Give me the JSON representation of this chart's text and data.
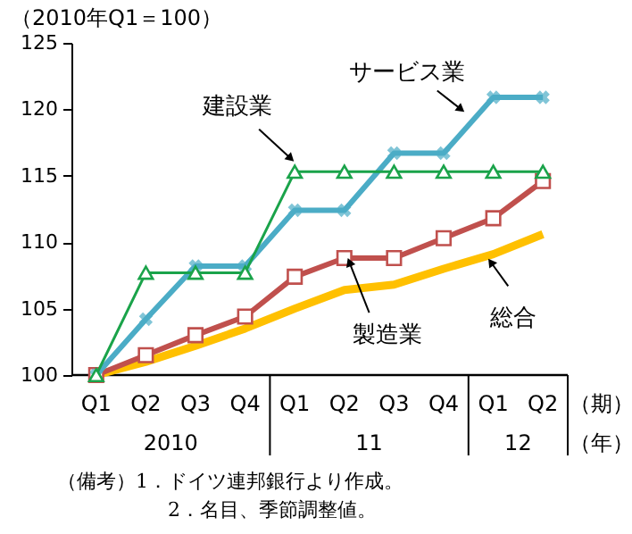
{
  "chart_data": {
    "type": "line",
    "ylabel": "（2010年Q1＝100）",
    "xlabel": "（期）",
    "categories": [
      "Q1",
      "Q2",
      "Q3",
      "Q4",
      "Q1",
      "Q2",
      "Q3",
      "Q4",
      "Q1",
      "Q2"
    ],
    "ylim": [
      100,
      125
    ],
    "yticks": [
      100,
      105,
      110,
      115,
      120,
      125
    ],
    "grid": false,
    "series": [
      {
        "name": "建設業",
        "color": "#1aa34a",
        "marker": "triangle",
        "values": [
          100,
          107.7,
          107.7,
          107.7,
          115.3,
          115.3,
          115.3,
          115.3,
          115.3,
          115.3
        ]
      },
      {
        "name": "サービス業",
        "color": "#4bacc6",
        "marker": "cross",
        "values": [
          100,
          104.2,
          108.2,
          108.2,
          112.4,
          112.4,
          116.7,
          116.7,
          120.9,
          120.9
        ]
      },
      {
        "name": "製造業",
        "color": "#c0504d",
        "marker": "square",
        "values": [
          100,
          101.5,
          103.0,
          104.4,
          107.4,
          108.8,
          108.8,
          110.3,
          111.8,
          114.6
        ]
      },
      {
        "name": "総合",
        "color": "#ffc000",
        "marker": "none",
        "values": [
          100,
          101.0,
          102.2,
          103.5,
          105.0,
          106.4,
          106.8,
          108.0,
          109.1,
          110.6
        ]
      }
    ],
    "annotations": [
      "2010",
      "11",
      "12",
      "（年）",
      "（備考）1．ドイツ連邦銀行より作成。",
      "2．名目、季節調整値。"
    ]
  }
}
